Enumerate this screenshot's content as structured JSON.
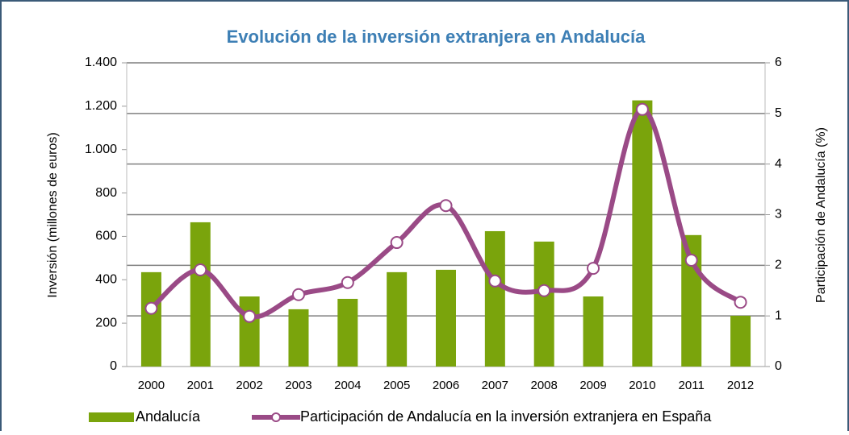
{
  "chart_data": {
    "type": "bar_line",
    "title": "Evolución de la inversión extranjera en Andalucía",
    "ylabel": "Inversión (millones de euros)",
    "y2label": "Participación de Andalucía (%)",
    "categories": [
      "2000",
      "2001",
      "2002",
      "2003",
      "2004",
      "2005",
      "2006",
      "2007",
      "2008",
      "2009",
      "2010",
      "2011",
      "2012"
    ],
    "series": [
      {
        "name": "Andalucía",
        "type": "bar",
        "color": "#7aa40c",
        "axis": "y",
        "values": [
          435,
          665,
          323,
          264,
          312,
          435,
          446,
          624,
          576,
          323,
          1227,
          606,
          234
        ]
      },
      {
        "name": "Participación de Andalucía en la inversión extranjera en España",
        "type": "line",
        "color": "#9a4a86",
        "axis": "y2",
        "values": [
          1.15,
          1.91,
          0.99,
          1.42,
          1.66,
          2.45,
          3.18,
          1.69,
          1.5,
          1.94,
          5.08,
          2.1,
          1.27
        ]
      }
    ],
    "ylim": [
      0,
      1400
    ],
    "yticks": [
      0,
      200,
      400,
      600,
      800,
      {
        "value": 1000,
        "label": "1.000"
      },
      {
        "value": 1200,
        "label": "1.200"
      },
      {
        "value": 1400,
        "label": "1.400"
      }
    ],
    "y2lim": [
      0,
      6
    ],
    "y2ticks": [
      0,
      1,
      2,
      3,
      4,
      5,
      6
    ],
    "grid": true,
    "legend": "bottom"
  }
}
